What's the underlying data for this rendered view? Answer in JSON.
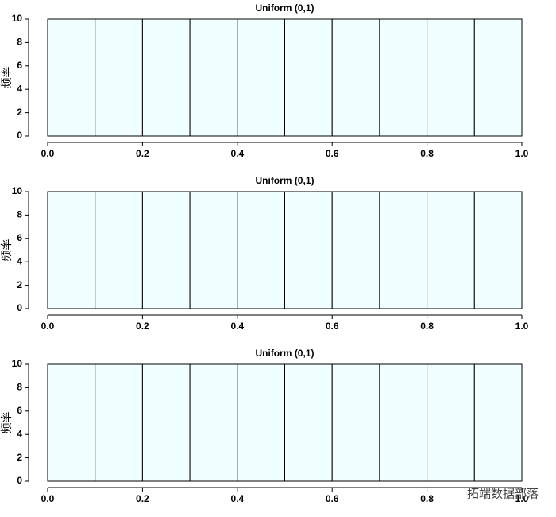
{
  "chart_data": [
    {
      "type": "histogram",
      "title": "Uniform (0,1)",
      "y_label": "频率",
      "bins": [
        0,
        0.1,
        0.2,
        0.3,
        0.4,
        0.5,
        0.6,
        0.7,
        0.8,
        0.9,
        1
      ],
      "values": [
        10,
        10,
        10,
        10,
        10,
        10,
        10,
        10,
        10,
        10
      ],
      "color": "#f0ffff",
      "xlim": [
        0,
        1
      ],
      "ylim": [
        0,
        10
      ],
      "xticks": [
        {
          "value": 0,
          "label": "0.0"
        },
        0.2,
        0.4,
        0.6,
        0.8,
        {
          "value": 1,
          "label": "1.0"
        }
      ],
      "yticks": [
        0,
        2,
        4,
        6,
        8,
        10
      ]
    },
    {
      "type": "histogram",
      "title": "Uniform (0,1)",
      "y_label": "频率",
      "bins": [
        0,
        0.1,
        0.2,
        0.3,
        0.4,
        0.5,
        0.6,
        0.7,
        0.8,
        0.9,
        1
      ],
      "values": [
        10,
        10,
        10,
        10,
        10,
        10,
        10,
        10,
        10,
        10
      ],
      "color": "#f0ffff",
      "xlim": [
        0,
        1
      ],
      "ylim": [
        0,
        10
      ],
      "xticks": [
        {
          "value": 0,
          "label": "0.0"
        },
        0.2,
        0.4,
        0.6,
        0.8,
        {
          "value": 1,
          "label": "1.0"
        }
      ],
      "yticks": [
        0,
        2,
        4,
        6,
        8,
        10
      ]
    },
    {
      "type": "histogram",
      "title": "Uniform (0,1)",
      "y_label": "频率",
      "bins": [
        0,
        0.1,
        0.2,
        0.3,
        0.4,
        0.5,
        0.6,
        0.7,
        0.8,
        0.9,
        1
      ],
      "values": [
        10,
        10,
        10,
        10,
        10,
        10,
        10,
        10,
        10,
        10
      ],
      "color": "#f0ffff",
      "xlim": [
        0,
        1
      ],
      "ylim": [
        0,
        10
      ],
      "xticks": [
        {
          "value": 0,
          "label": "0.0"
        },
        0.2,
        0.4,
        0.6,
        0.8,
        {
          "value": 1,
          "label": "1.0"
        }
      ],
      "yticks": [
        0,
        2,
        4,
        6,
        8,
        10
      ]
    }
  ],
  "watermark": "拓端数据部落"
}
